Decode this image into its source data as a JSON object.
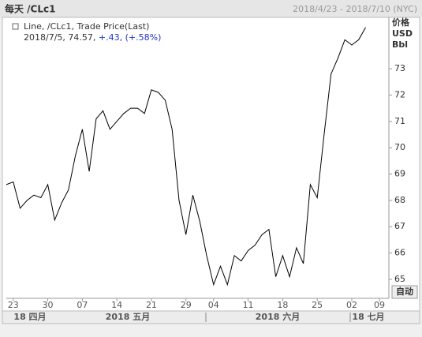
{
  "chart_data": {
    "type": "line",
    "title": "每天 /CLc1",
    "date_range": "2018/4/23 - 2018/7/10 (NYC)",
    "legend": {
      "name": "Line, /CLc1, Trade Price(Last)",
      "quote": [
        "2018/7/5,",
        "74.57,",
        "+.43,",
        "(+.58%)"
      ]
    },
    "y_unit": [
      "价格",
      "USD",
      "Bbl"
    ],
    "button": "自动",
    "month_labels": [
      "18 四月",
      "2018 五月",
      "2018 六月",
      "18 七月"
    ],
    "categories": [
      null,
      "23",
      null,
      null,
      null,
      null,
      "30",
      null,
      null,
      null,
      null,
      "07",
      null,
      null,
      null,
      null,
      "14",
      null,
      null,
      null,
      null,
      "21",
      null,
      null,
      null,
      null,
      "29",
      null,
      null,
      null,
      "04",
      null,
      null,
      null,
      null,
      "11",
      null,
      null,
      null,
      null,
      "18",
      null,
      null,
      null,
      null,
      "25",
      null,
      null,
      null,
      null,
      "02",
      null,
      null,
      null,
      "09"
    ],
    "series": [
      {
        "name": "/CLc1",
        "color": "#000000",
        "values": [
          68.6,
          68.7,
          67.7,
          68.0,
          68.2,
          68.1,
          68.6,
          67.25,
          67.9,
          68.4,
          69.7,
          70.7,
          69.1,
          71.1,
          71.4,
          70.7,
          71.0,
          71.3,
          71.5,
          71.5,
          71.3,
          72.2,
          72.1,
          71.8,
          70.7,
          68.0,
          66.7,
          68.2,
          67.2,
          65.9,
          64.8,
          65.5,
          64.8,
          65.9,
          65.7,
          66.1,
          66.3,
          66.7,
          66.9,
          65.1,
          65.9,
          65.1,
          66.2,
          65.6,
          68.6,
          68.1,
          70.5,
          72.8,
          73.4,
          74.1,
          73.9,
          74.1,
          74.57,
          null,
          null
        ]
      }
    ],
    "ylim": [
      64.28,
      74.95
    ],
    "yticks": [
      65,
      66,
      67,
      68,
      69,
      70,
      71,
      72,
      73
    ]
  }
}
